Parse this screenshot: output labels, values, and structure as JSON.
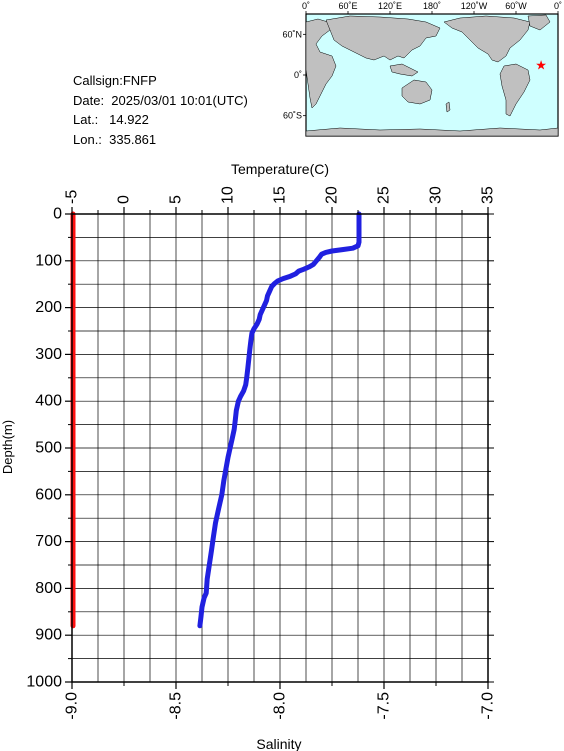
{
  "station": {
    "callsign": "Callsign:FNFP",
    "date": "Date:  2025/03/01 10:01(UTC)",
    "lat": "Lat.:   14.922",
    "lon": "Lon.:  335.861"
  },
  "map": {
    "top_labels": [
      "0˚",
      "60˚E",
      "120˚E",
      "180˚",
      "120˚W",
      "60˚W",
      "0˚"
    ],
    "left_labels": [
      "60˚N",
      "0˚",
      "60˚S"
    ],
    "ocean_color": "#cfffff",
    "land_color": "#c0c0c0",
    "marker_color": "#ff0000",
    "marker_icon": "star-icon",
    "marker_lon": 335.861,
    "marker_lat": 14.922
  },
  "chart_data": {
    "type": "line",
    "title": "",
    "ylabel": "Depth(m)",
    "ylim": [
      0,
      1000
    ],
    "y_ticks": [
      "0",
      "100",
      "200",
      "300",
      "400",
      "500",
      "600",
      "700",
      "800",
      "900",
      "1000"
    ],
    "top_axis": {
      "label": "Temperature(C)",
      "range": [
        -5,
        35
      ],
      "ticks": [
        "-5",
        "0",
        "5",
        "10",
        "15",
        "20",
        "25",
        "30",
        "35"
      ]
    },
    "bottom_axis": {
      "label": "Salinity",
      "range": [
        -9.0,
        -7.0
      ],
      "ticks": [
        "-9.0",
        "-8.5",
        "-8.0",
        "-7.5",
        "-7.0"
      ]
    },
    "grid": true,
    "series": [
      {
        "axis": "top",
        "color": "#2020e0",
        "points": [
          [
            22.6,
            0
          ],
          [
            22.6,
            20
          ],
          [
            22.6,
            40
          ],
          [
            22.6,
            60
          ],
          [
            22.5,
            68
          ],
          [
            22.0,
            73
          ],
          [
            21.0,
            76
          ],
          [
            20.0,
            79
          ],
          [
            19.4,
            82
          ],
          [
            19.0,
            86
          ],
          [
            18.8,
            92
          ],
          [
            18.5,
            100
          ],
          [
            18.2,
            108
          ],
          [
            17.8,
            113
          ],
          [
            17.3,
            118
          ],
          [
            16.8,
            122
          ],
          [
            16.5,
            128
          ],
          [
            16.0,
            133
          ],
          [
            15.3,
            138
          ],
          [
            14.8,
            143
          ],
          [
            14.5,
            148
          ],
          [
            14.2,
            155
          ],
          [
            14.0,
            165
          ],
          [
            13.8,
            175
          ],
          [
            13.7,
            185
          ],
          [
            13.5,
            195
          ],
          [
            13.3,
            205
          ],
          [
            13.1,
            215
          ],
          [
            13.0,
            225
          ],
          [
            12.8,
            235
          ],
          [
            12.5,
            245
          ],
          [
            12.3,
            255
          ],
          [
            12.2,
            270
          ],
          [
            12.1,
            290
          ],
          [
            12.0,
            310
          ],
          [
            11.9,
            330
          ],
          [
            11.8,
            350
          ],
          [
            11.7,
            365
          ],
          [
            11.5,
            378
          ],
          [
            11.2,
            390
          ],
          [
            11.0,
            400
          ],
          [
            10.8,
            420
          ],
          [
            10.7,
            440
          ],
          [
            10.6,
            460
          ],
          [
            10.4,
            480
          ],
          [
            10.2,
            500
          ],
          [
            10.0,
            520
          ],
          [
            9.8,
            545
          ],
          [
            9.6,
            570
          ],
          [
            9.4,
            600
          ],
          [
            9.1,
            630
          ],
          [
            8.8,
            660
          ],
          [
            8.6,
            690
          ],
          [
            8.4,
            720
          ],
          [
            8.2,
            750
          ],
          [
            8.0,
            780
          ],
          [
            7.9,
            810
          ],
          [
            7.7,
            820
          ],
          [
            7.5,
            840
          ],
          [
            7.4,
            860
          ],
          [
            7.3,
            880
          ]
        ]
      },
      {
        "axis": "bottom",
        "color": "#ff1010",
        "points": [
          [
            -8.995,
            0
          ],
          [
            -8.995,
            880
          ]
        ]
      }
    ]
  }
}
